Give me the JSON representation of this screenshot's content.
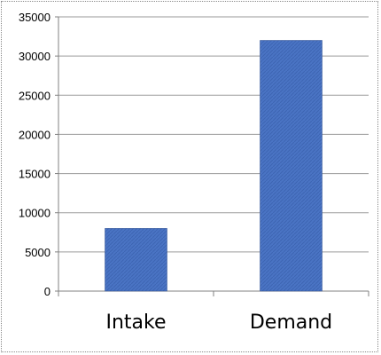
{
  "chart_data": {
    "type": "bar",
    "categories": [
      "Intake",
      "Demand"
    ],
    "values": [
      8000,
      32000
    ],
    "title": "",
    "xlabel": "",
    "ylabel": "",
    "ylim": [
      0,
      35000
    ],
    "yticks": [
      "0",
      "5000",
      "10000",
      "15000",
      "20000",
      "25000",
      "30000",
      "35000"
    ],
    "grid": true,
    "legend": "none"
  },
  "colors": {
    "bar_fill": "#4a74c4",
    "bar_stroke": "#2f4f8f",
    "grid": "#9a9a9a",
    "axis": "#808080"
  }
}
